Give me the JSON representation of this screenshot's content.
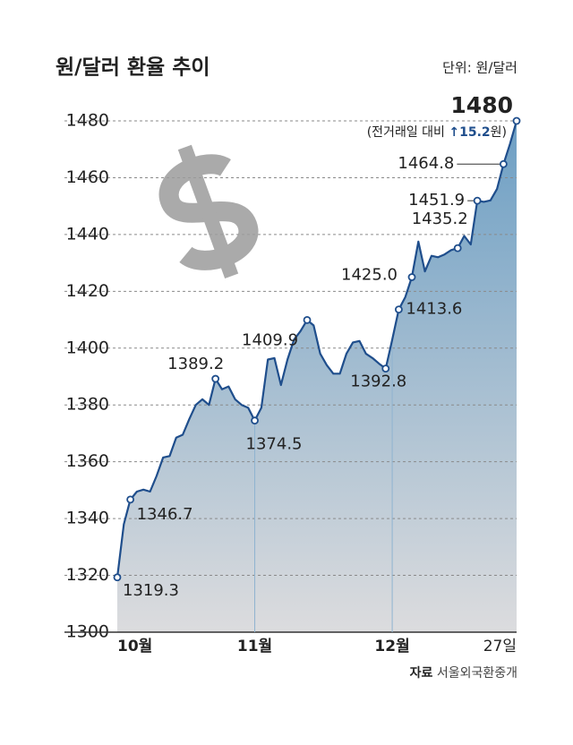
{
  "chart_data": {
    "type": "area-line",
    "title": "원/달러 환율 추이",
    "unit": "단위: 원/달러",
    "source_label": "자료",
    "source": "서울외국환중개",
    "change_note": {
      "prefix": "(전거래일 대비",
      "arrow": "↑15.2",
      "suffix": "원)"
    },
    "categories": [
      "10월",
      null,
      null,
      null,
      null,
      null,
      null,
      null,
      null,
      null,
      null,
      null,
      null,
      null,
      null,
      null,
      null,
      null,
      null,
      null,
      null,
      "11월",
      null,
      null,
      null,
      null,
      null,
      null,
      null,
      null,
      null,
      null,
      null,
      null,
      null,
      null,
      null,
      null,
      null,
      null,
      null,
      null,
      "12월",
      null,
      null,
      null,
      null,
      null,
      null,
      null,
      null,
      null,
      null,
      null,
      null,
      null,
      null,
      null,
      null,
      null,
      null,
      "27일"
    ],
    "values": [
      1319.3,
      1338,
      1346.7,
      1349.5,
      1350.2,
      1349.5,
      1355,
      1361.5,
      1362,
      1368.5,
      1369.5,
      1375,
      1380,
      1382,
      1380,
      1389.2,
      1385.5,
      1386.5,
      1382,
      1380,
      1379,
      1374.5,
      1379,
      1396,
      1396.5,
      1387,
      1396,
      1403,
      1406,
      1409.9,
      1408,
      1398,
      1394,
      1391,
      1391,
      1398,
      1402,
      1402.5,
      1398,
      1396.5,
      1394.5,
      1392.8,
      1403,
      1413.6,
      1418,
      1425,
      1437.5,
      1427,
      1432.5,
      1432,
      1433,
      1434.5,
      1435.2,
      1439.5,
      1436.5,
      1451.9,
      1451.5,
      1452,
      1456,
      1464.8,
      1472,
      1480
    ],
    "value_labels": [
      "1319.3",
      null,
      "1346.7",
      null,
      null,
      null,
      null,
      null,
      null,
      null,
      null,
      null,
      null,
      null,
      null,
      "1389.2",
      null,
      null,
      null,
      null,
      null,
      "1374.5",
      null,
      null,
      null,
      null,
      null,
      null,
      null,
      "1409.9",
      null,
      null,
      null,
      null,
      null,
      null,
      null,
      null,
      null,
      null,
      null,
      "1392.8",
      null,
      "1413.6",
      null,
      "1425.0",
      null,
      null,
      null,
      null,
      null,
      null,
      "1435.2",
      null,
      null,
      "1451.9",
      null,
      null,
      null,
      "1464.8",
      null,
      "1480"
    ],
    "color": "#1f4e8c",
    "ylim": [
      1300,
      1480
    ],
    "yticks": [
      1300,
      1320,
      1340,
      1360,
      1380,
      1400,
      1420,
      1440,
      1460,
      1480
    ],
    "grid": true
  }
}
